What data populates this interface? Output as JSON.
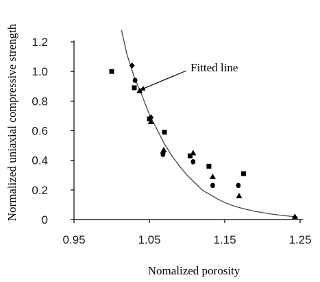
{
  "chart_data": {
    "type": "scatter",
    "title": "",
    "xlabel": "Nomalized porosity",
    "ylabel": "Normalized uniaxial compressive strength",
    "xlim": [
      0.95,
      1.25
    ],
    "ylim": [
      0,
      1.2
    ],
    "xticks": [
      "0.95",
      "1.05",
      "1.15",
      "1.25"
    ],
    "xtick_values": [
      0.95,
      1.05,
      1.15,
      1.25
    ],
    "yticks": [
      "0",
      "0.2",
      "0.4",
      "0.6",
      "0.8",
      "1.0",
      "1.2"
    ],
    "ytick_values": [
      0,
      0.2,
      0.4,
      0.6,
      0.8,
      1.0,
      1.2
    ],
    "grid": false,
    "series": [
      {
        "marker": "square",
        "points": [
          {
            "x": 1.0,
            "y": 1.0
          },
          {
            "x": 1.03,
            "y": 0.89
          },
          {
            "x": 1.05,
            "y": 0.68
          },
          {
            "x": 1.07,
            "y": 0.59
          },
          {
            "x": 1.104,
            "y": 0.43
          },
          {
            "x": 1.129,
            "y": 0.36
          },
          {
            "x": 1.175,
            "y": 0.31
          }
        ]
      },
      {
        "marker": "diamond",
        "points": [
          {
            "x": 1.027,
            "y": 1.04
          },
          {
            "x": 1.052,
            "y": 0.69
          },
          {
            "x": 1.068,
            "y": 0.45
          }
        ]
      },
      {
        "marker": "circle",
        "points": [
          {
            "x": 1.031,
            "y": 0.94
          },
          {
            "x": 1.068,
            "y": 0.44
          },
          {
            "x": 1.108,
            "y": 0.39
          },
          {
            "x": 1.134,
            "y": 0.23
          },
          {
            "x": 1.168,
            "y": 0.23
          }
        ]
      },
      {
        "marker": "triangle",
        "points": [
          {
            "x": 1.037,
            "y": 0.87
          },
          {
            "x": 1.052,
            "y": 0.66
          },
          {
            "x": 1.069,
            "y": 0.47
          },
          {
            "x": 1.108,
            "y": 0.45
          },
          {
            "x": 1.134,
            "y": 0.29
          },
          {
            "x": 1.169,
            "y": 0.16
          },
          {
            "x": 1.243,
            "y": 0.02
          }
        ]
      }
    ],
    "fitted_line": {
      "label": "Fitted line",
      "x": [
        1.013,
        1.02,
        1.03,
        1.04,
        1.05,
        1.06,
        1.07,
        1.08,
        1.09,
        1.1,
        1.11,
        1.12,
        1.13,
        1.14,
        1.15,
        1.16,
        1.17,
        1.18,
        1.19,
        1.2,
        1.21,
        1.22,
        1.23,
        1.24,
        1.247
      ],
      "y": [
        1.28,
        1.12,
        0.96,
        0.84,
        0.71,
        0.61,
        0.51,
        0.43,
        0.36,
        0.3,
        0.25,
        0.2,
        0.17,
        0.14,
        0.115,
        0.095,
        0.08,
        0.067,
        0.056,
        0.047,
        0.039,
        0.032,
        0.026,
        0.021,
        0.018
      ]
    },
    "annotations": [
      {
        "text": "Fitted line",
        "points_to": {
          "x": 1.036,
          "y": 0.87
        }
      }
    ]
  }
}
